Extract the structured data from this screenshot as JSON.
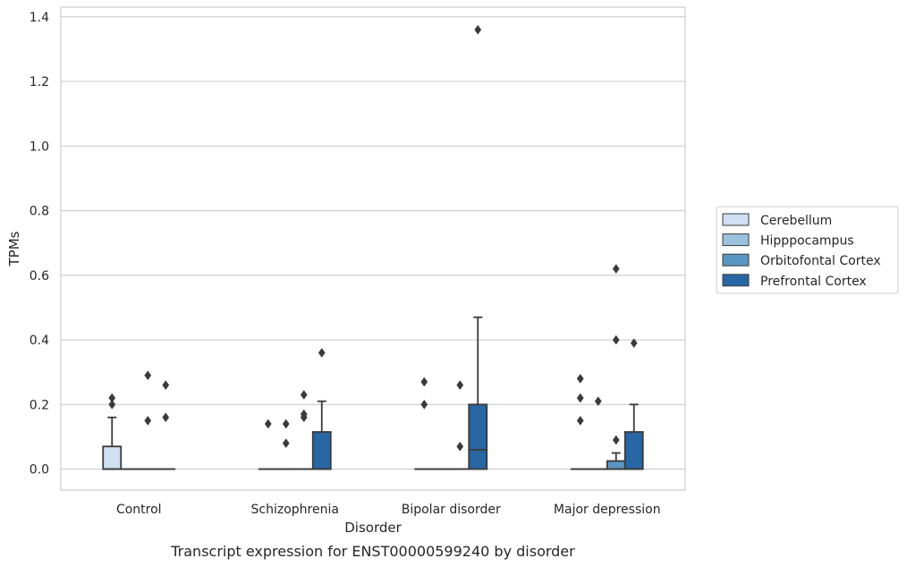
{
  "chart_data": {
    "type": "box",
    "title": "",
    "caption": "Transcript expression for ENST00000599240 by disorder",
    "xlabel": "Disorder",
    "ylabel": "TPMs",
    "ylim": [
      -0.065,
      1.43
    ],
    "yticks": [
      0.0,
      0.2,
      0.4,
      0.6,
      0.8,
      1.0,
      1.2,
      1.4
    ],
    "ytick_labels": [
      "0.0",
      "0.2",
      "0.4",
      "0.6",
      "0.8",
      "1.0",
      "1.2",
      "1.4"
    ],
    "grid": true,
    "legend_position": "right",
    "categories": [
      "Control",
      "Schizophrenia",
      "Bipolar disorder",
      "Major depression"
    ],
    "series": [
      {
        "name": "Cerebellum",
        "color": "#d0e0f2",
        "boxes": [
          {
            "q1": 0.0,
            "median": 0.0,
            "q3": 0.07,
            "whisker_low": 0.0,
            "whisker_high": 0.16,
            "outliers": [
              0.22,
              0.2
            ]
          },
          {
            "q1": 0.0,
            "median": 0.0,
            "q3": 0.0,
            "whisker_low": 0.0,
            "whisker_high": 0.0,
            "outliers": [
              0.14
            ]
          },
          {
            "q1": 0.0,
            "median": 0.0,
            "q3": 0.0,
            "whisker_low": 0.0,
            "whisker_high": 0.0,
            "outliers": [
              0.27,
              0.2
            ]
          },
          {
            "q1": 0.0,
            "median": 0.0,
            "q3": 0.0,
            "whisker_low": 0.0,
            "whisker_high": 0.0,
            "outliers": [
              0.28,
              0.22,
              0.15
            ]
          }
        ]
      },
      {
        "name": "Hipppocampus",
        "color": "#9bc2dc",
        "boxes": [
          {
            "q1": 0.0,
            "median": 0.0,
            "q3": 0.0,
            "whisker_low": 0.0,
            "whisker_high": 0.0,
            "outliers": []
          },
          {
            "q1": 0.0,
            "median": 0.0,
            "q3": 0.0,
            "whisker_low": 0.0,
            "whisker_high": 0.0,
            "outliers": [
              0.14,
              0.08
            ]
          },
          {
            "q1": 0.0,
            "median": 0.0,
            "q3": 0.0,
            "whisker_low": 0.0,
            "whisker_high": 0.0,
            "outliers": []
          },
          {
            "q1": 0.0,
            "median": 0.0,
            "q3": 0.0,
            "whisker_low": 0.0,
            "whisker_high": 0.0,
            "outliers": [
              0.21
            ]
          }
        ]
      },
      {
        "name": "Orbitofontal Cortex",
        "color": "#5b95c3",
        "boxes": [
          {
            "q1": 0.0,
            "median": 0.0,
            "q3": 0.0,
            "whisker_low": 0.0,
            "whisker_high": 0.0,
            "outliers": [
              0.29,
              0.15
            ]
          },
          {
            "q1": 0.0,
            "median": 0.0,
            "q3": 0.0,
            "whisker_low": 0.0,
            "whisker_high": 0.0,
            "outliers": [
              0.23,
              0.17,
              0.16
            ]
          },
          {
            "q1": 0.0,
            "median": 0.0,
            "q3": 0.0,
            "whisker_low": 0.0,
            "whisker_high": 0.0,
            "outliers": [
              0.26,
              0.07
            ]
          },
          {
            "q1": 0.0,
            "median": 0.0,
            "q3": 0.025,
            "whisker_low": 0.0,
            "whisker_high": 0.05,
            "outliers": [
              0.62,
              0.4,
              0.09
            ]
          }
        ]
      },
      {
        "name": "Prefrontal Cortex",
        "color": "#2866a4",
        "boxes": [
          {
            "q1": 0.0,
            "median": 0.0,
            "q3": 0.0,
            "whisker_low": 0.0,
            "whisker_high": 0.0,
            "outliers": [
              0.26,
              0.16
            ]
          },
          {
            "q1": 0.0,
            "median": 0.0,
            "q3": 0.115,
            "whisker_low": 0.0,
            "whisker_high": 0.21,
            "outliers": [
              0.36
            ]
          },
          {
            "q1": 0.0,
            "median": 0.06,
            "q3": 0.2,
            "whisker_low": 0.0,
            "whisker_high": 0.47,
            "outliers": [
              1.36
            ]
          },
          {
            "q1": 0.0,
            "median": 0.0,
            "q3": 0.115,
            "whisker_low": 0.0,
            "whisker_high": 0.2,
            "outliers": [
              0.39
            ]
          }
        ]
      }
    ]
  }
}
